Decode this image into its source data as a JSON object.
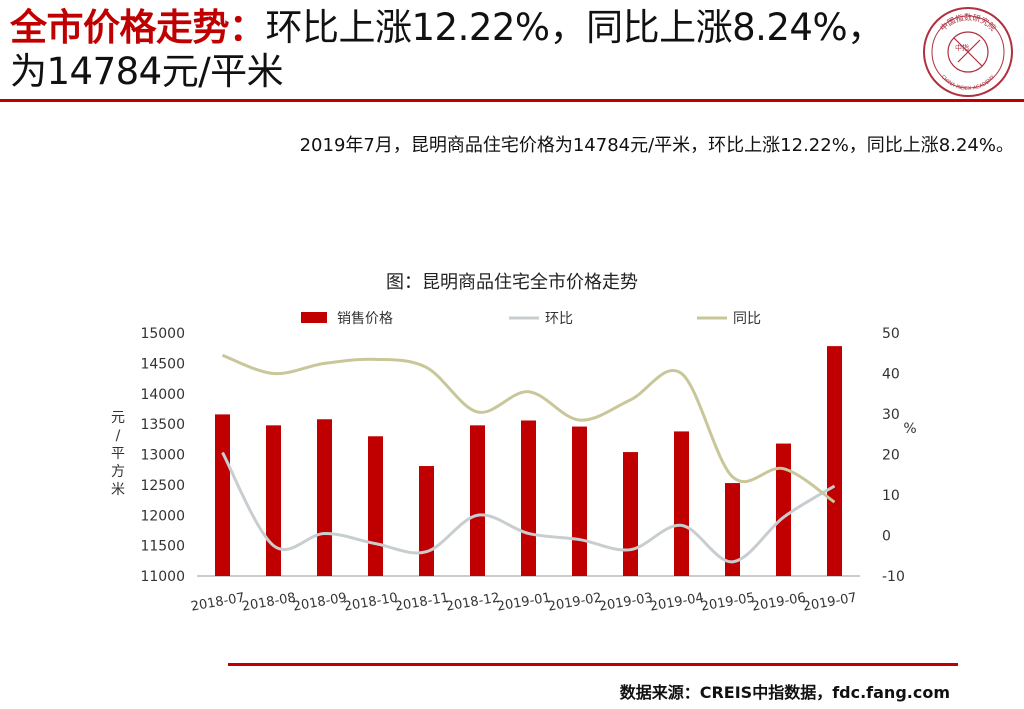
{
  "header": {
    "title_highlight": "全市价格走势：",
    "title_rest": "环比上涨12.22%，同比上涨8.24%，为14784元/平米"
  },
  "logo": {
    "text": "中国指数研究院",
    "center_text": "中指",
    "english": "CHINA INDEX ACADEMY"
  },
  "description": "2019年7月，昆明商品住宅价格为14784元/平米，环比上涨12.22%，同比上涨8.24%。",
  "chart_title": "图：昆明商品住宅全市价格走势",
  "source": "数据来源：CREIS中指数据，fdc.fang.com",
  "chart_data": {
    "type": "bar",
    "title": "图：昆明商品住宅全市价格走势",
    "categories": [
      "2018-07",
      "2018-08",
      "2018-09",
      "2018-10",
      "2018-11",
      "2018-12",
      "2019-01",
      "2019-02",
      "2019-03",
      "2019-04",
      "2019-05",
      "2019-06",
      "2019-07"
    ],
    "series": [
      {
        "name": "销售价格",
        "type": "bar",
        "axis": "left",
        "color": "#c00000",
        "values": [
          13660,
          13480,
          13580,
          13300,
          12810,
          13480,
          13560,
          13460,
          13040,
          13380,
          12530,
          13180,
          14784
        ]
      },
      {
        "name": "环比",
        "type": "line",
        "axis": "right",
        "color": "#c8cdd0",
        "values": [
          20.5,
          -2.5,
          0.5,
          -2.0,
          -4.0,
          5.0,
          0.5,
          -1.0,
          -3.5,
          2.5,
          -6.5,
          4.5,
          12.22
        ]
      },
      {
        "name": "同比",
        "type": "line",
        "axis": "right",
        "color": "#c9c79a",
        "values": [
          44.5,
          40.0,
          42.5,
          43.5,
          41.5,
          30.5,
          35.5,
          28.5,
          33.5,
          40.0,
          14.5,
          16.5,
          8.24
        ]
      }
    ],
    "ylabel": "元/平方米",
    "ylim": [
      11000,
      15000
    ],
    "yticks": [
      11000,
      11500,
      12000,
      12500,
      13000,
      13500,
      14000,
      14500,
      15000
    ],
    "y2label": "%",
    "y2lim": [
      -10,
      50
    ],
    "y2ticks": [
      -10,
      0,
      10,
      20,
      30,
      40,
      50
    ],
    "legend_position": "top",
    "grid": false
  }
}
